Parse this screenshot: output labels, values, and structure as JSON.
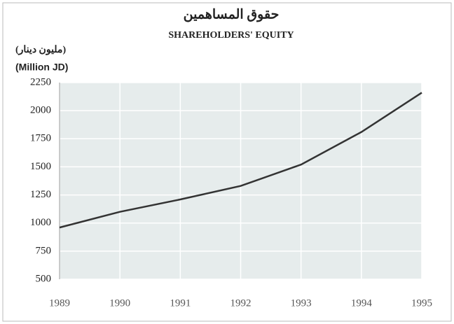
{
  "chart_data": {
    "type": "line",
    "title": "حقوق المساهمين",
    "subtitle": "SHAREHOLDERS' EQUITY",
    "y_label_ar": "(مليون دينار)",
    "y_label": "(Million JD)",
    "x": [
      1989,
      1990,
      1991,
      1992,
      1993,
      1994,
      1995
    ],
    "series": [
      {
        "name": "Shareholders' Equity",
        "color": "#333333",
        "values": [
          960,
          1100,
          1210,
          1330,
          1520,
          1810,
          2160
        ]
      }
    ],
    "xlim": [
      1989,
      1995
    ],
    "xticks": [
      1989,
      1990,
      1991,
      1992,
      1993,
      1994,
      1995
    ],
    "ylim": [
      500,
      2250
    ],
    "yticks": [
      500,
      750,
      1000,
      1250,
      1500,
      1750,
      2000,
      2250
    ],
    "grid": true
  }
}
